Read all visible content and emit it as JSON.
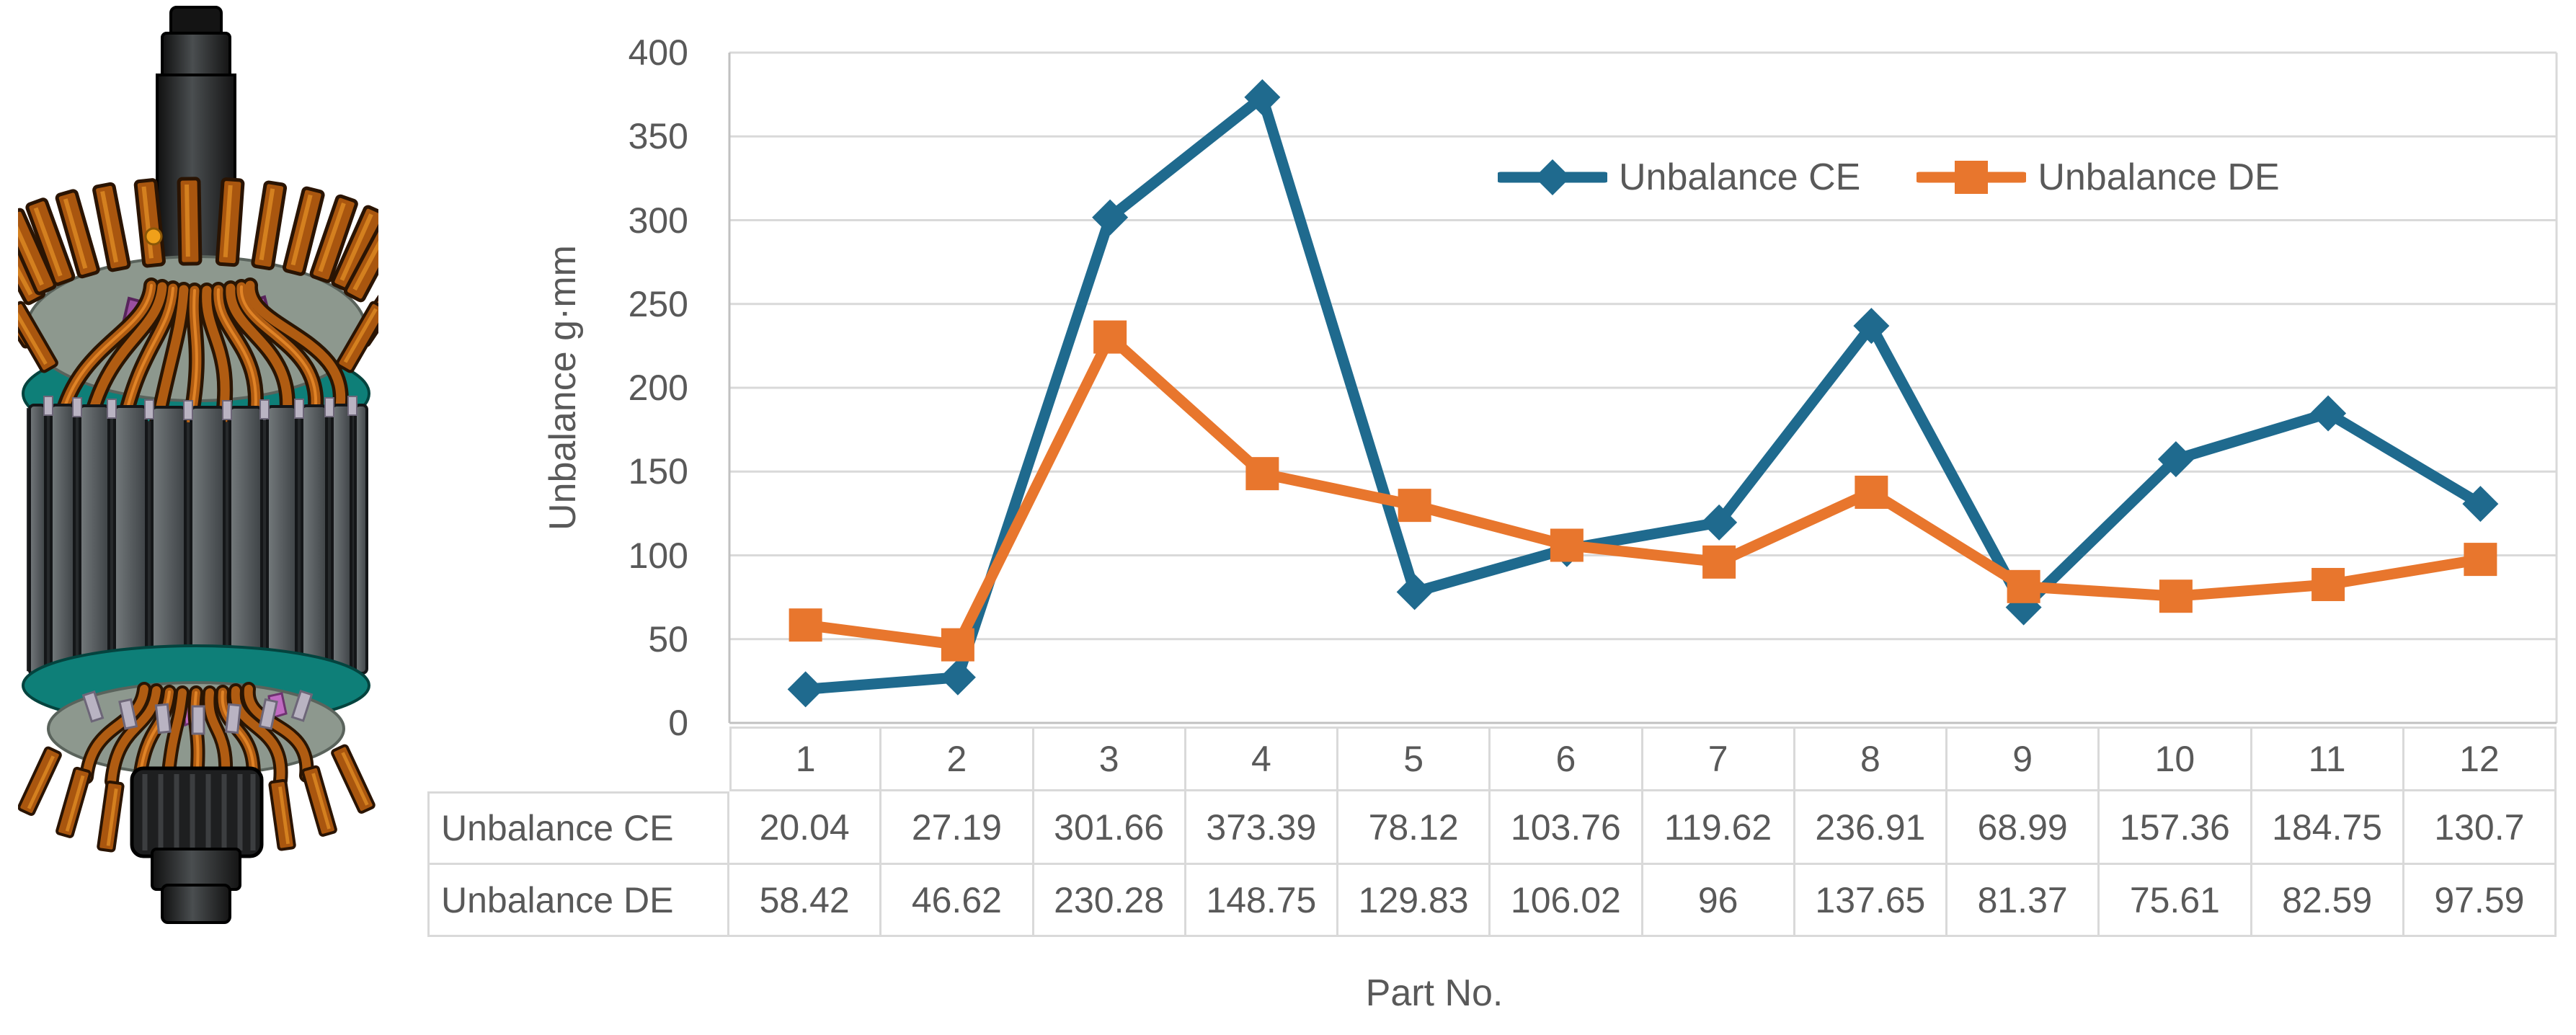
{
  "figure": {
    "rotor_image": "motor-rotor-3d-model"
  },
  "chart_data": {
    "type": "line",
    "title": "",
    "xlabel": "Part No.",
    "ylabel": "Unbalance g·mm",
    "categories": [
      "1",
      "2",
      "3",
      "4",
      "5",
      "6",
      "7",
      "8",
      "9",
      "10",
      "11",
      "12"
    ],
    "series": [
      {
        "name": "Unbalance CE",
        "marker": "diamond",
        "color": "#1F6A8E",
        "values": [
          20.04,
          27.19,
          301.66,
          373.39,
          78.12,
          103.76,
          119.62,
          236.91,
          68.99,
          157.36,
          184.75,
          130.7
        ]
      },
      {
        "name": "Unbalance DE",
        "marker": "square",
        "color": "#E8762D",
        "values": [
          58.42,
          46.62,
          230.28,
          148.75,
          129.83,
          106.02,
          96,
          137.65,
          81.37,
          75.61,
          82.59,
          97.59
        ]
      }
    ],
    "ylim": [
      0,
      400
    ],
    "ytick_step": 50,
    "yticks": [
      "0",
      "50",
      "100",
      "150",
      "200",
      "250",
      "300",
      "350",
      "400"
    ],
    "grid": true,
    "legend_position": "top-inside",
    "data_table": true
  },
  "colors": {
    "grid": "#D9D9D9",
    "axis": "#C1C1C1",
    "text": "#595959",
    "background": "#FFFFFF",
    "rotor_copper": "#A9560F",
    "rotor_teal": "#0E7F78",
    "rotor_gray": "#54585A"
  }
}
